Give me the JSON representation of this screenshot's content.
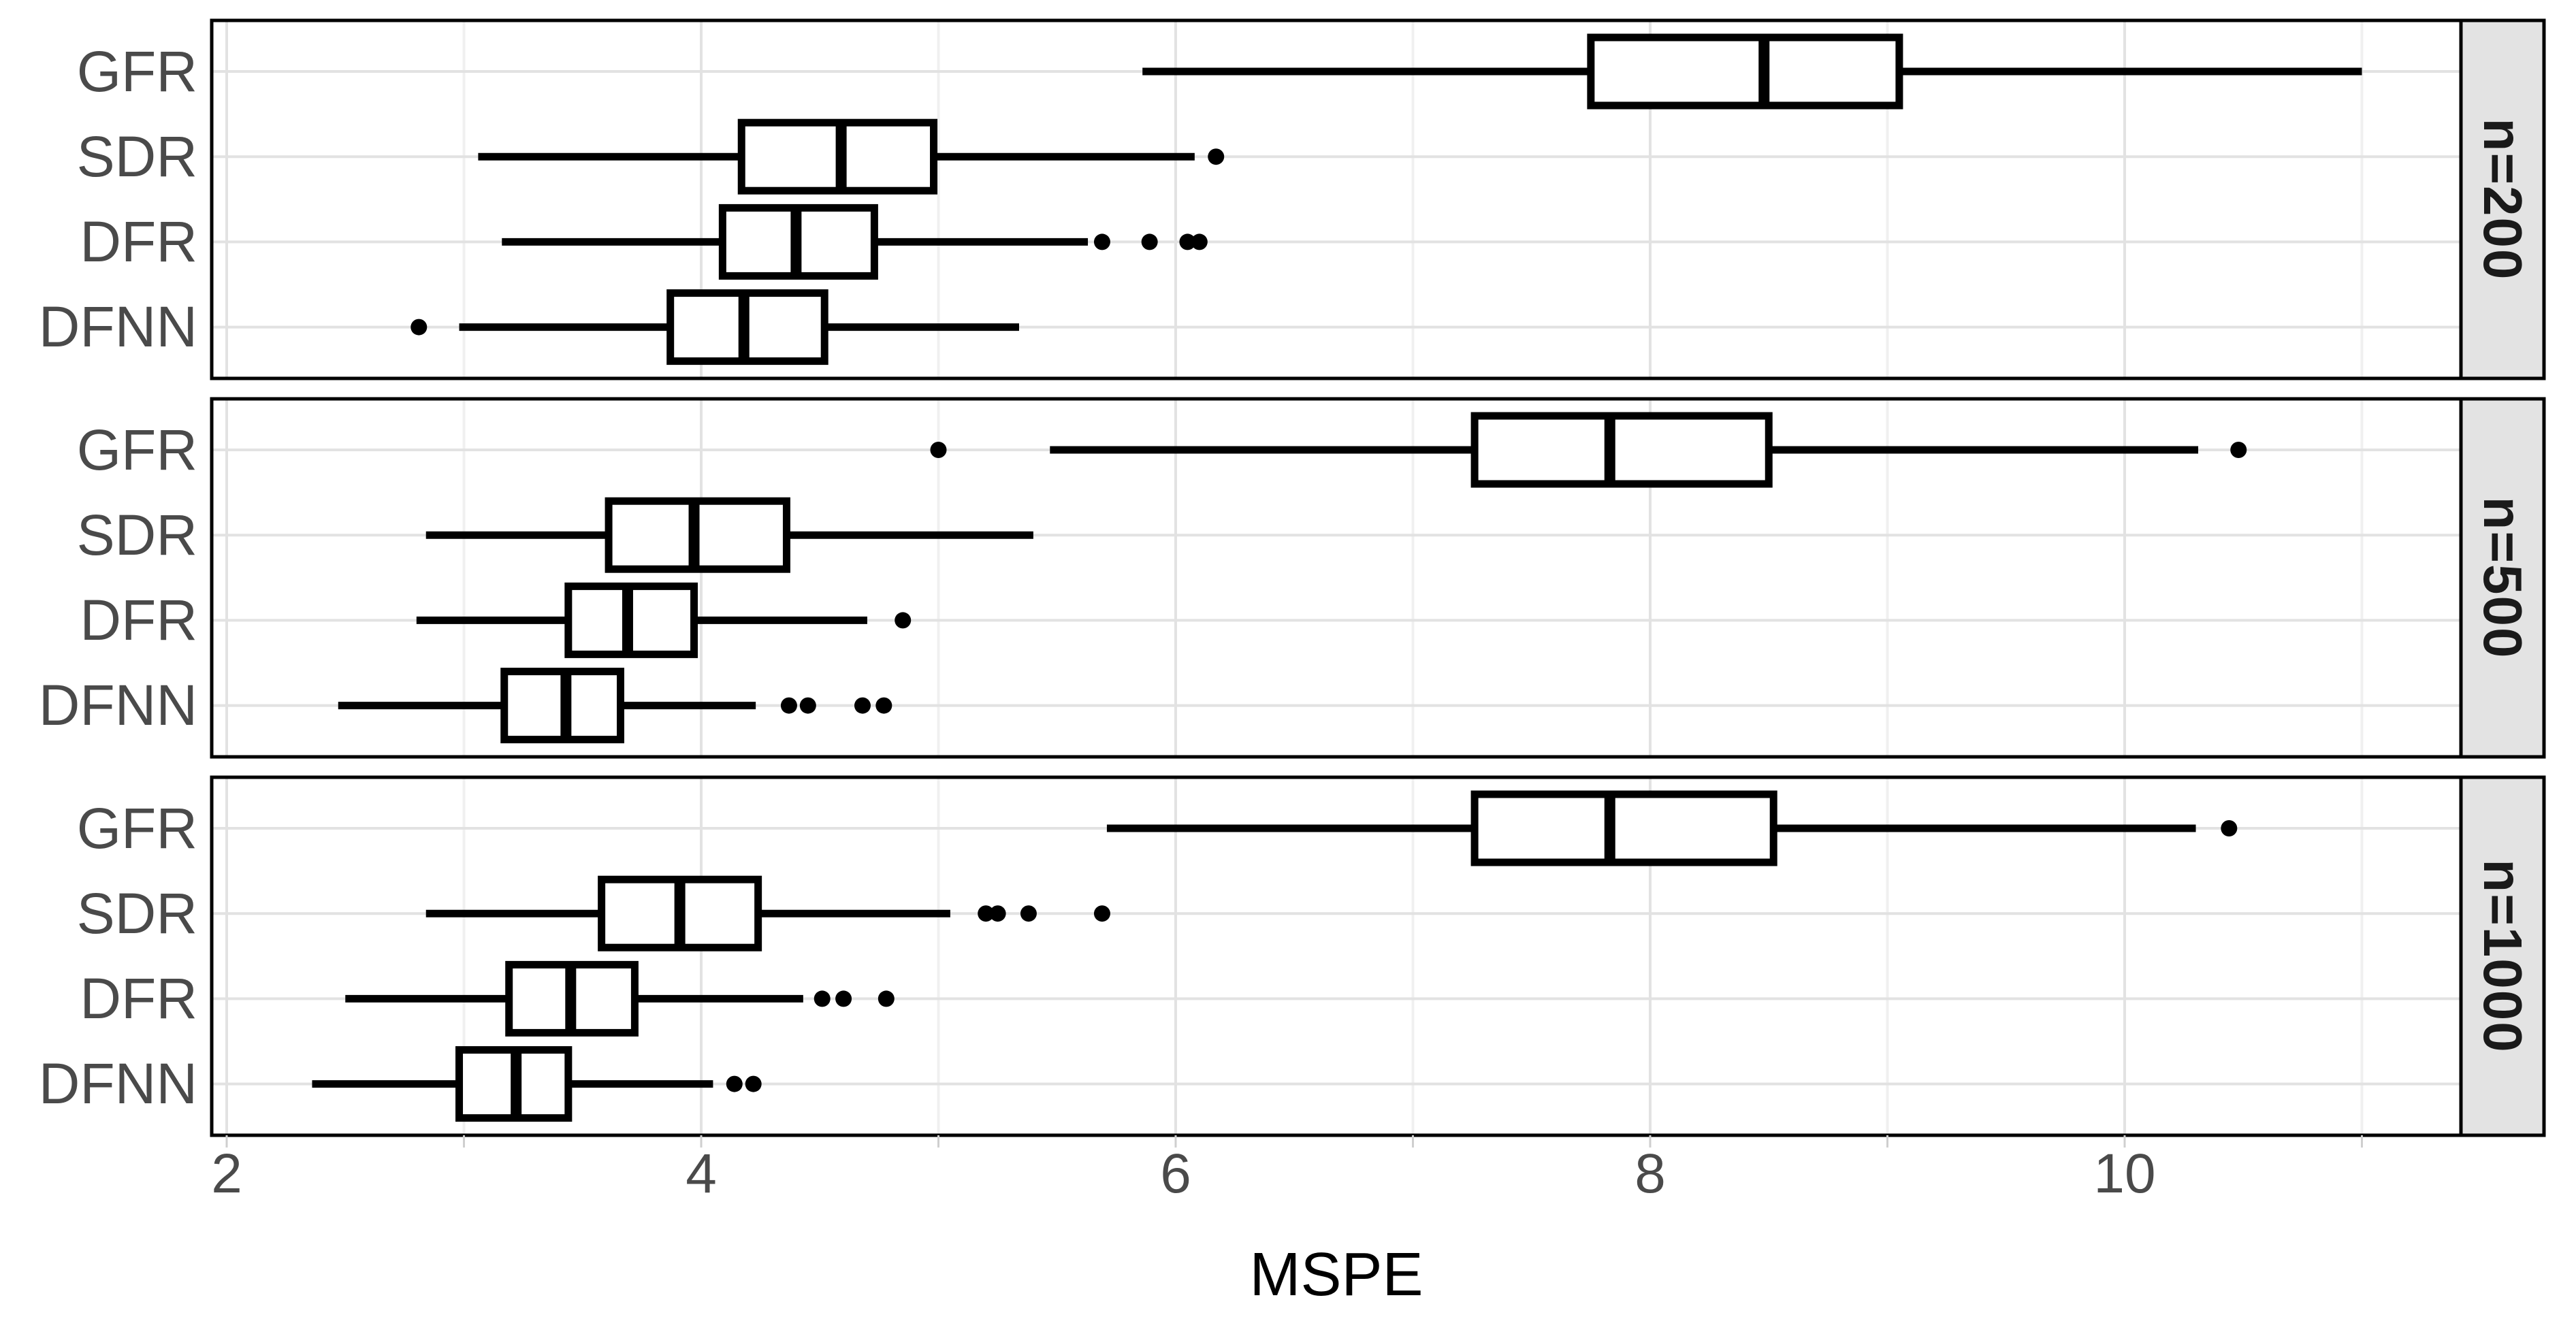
{
  "chart_data": {
    "type": "boxplot",
    "orientation": "horizontal",
    "title": "",
    "xlabel": "MSPE",
    "ylabel": "",
    "x_ticks": [
      "2",
      "4",
      "6",
      "8",
      "10"
    ],
    "x_tick_values": [
      2,
      4,
      6,
      8,
      10
    ],
    "x_minor_gridlines": [
      3,
      5,
      7,
      9,
      11
    ],
    "x_range": [
      1.94,
      11.48
    ],
    "grid": true,
    "legend": "none",
    "facet_strip_side": "right",
    "y_categories": [
      "GFR",
      "SDR",
      "DFR",
      "DFNN"
    ],
    "facets": [
      {
        "label": "n=200",
        "boxes": [
          {
            "method": "GFR",
            "whisker_min": 5.86,
            "q1": 7.75,
            "median": 8.48,
            "q3": 9.05,
            "whisker_max": 11.0,
            "outliers": []
          },
          {
            "method": "SDR",
            "whisker_min": 3.06,
            "q1": 4.17,
            "median": 4.59,
            "q3": 4.98,
            "whisker_max": 6.08,
            "outliers": [
              6.17
            ]
          },
          {
            "method": "DFR",
            "whisker_min": 3.16,
            "q1": 4.09,
            "median": 4.4,
            "q3": 4.73,
            "whisker_max": 5.63,
            "outliers": [
              5.69,
              5.89,
              6.05,
              6.1
            ]
          },
          {
            "method": "DFNN",
            "whisker_min": 2.98,
            "q1": 3.87,
            "median": 4.18,
            "q3": 4.52,
            "whisker_max": 5.34,
            "outliers": [
              2.81
            ]
          }
        ]
      },
      {
        "label": "n=500",
        "boxes": [
          {
            "method": "GFR",
            "whisker_min": 5.47,
            "q1": 7.26,
            "median": 7.83,
            "q3": 8.5,
            "whisker_max": 10.31,
            "outliers": [
              5.0,
              10.48
            ]
          },
          {
            "method": "SDR",
            "whisker_min": 2.84,
            "q1": 3.61,
            "median": 3.97,
            "q3": 4.36,
            "whisker_max": 5.4,
            "outliers": []
          },
          {
            "method": "DFR",
            "whisker_min": 2.8,
            "q1": 3.44,
            "median": 3.69,
            "q3": 3.97,
            "whisker_max": 4.7,
            "outliers": [
              4.85
            ]
          },
          {
            "method": "DFNN",
            "whisker_min": 2.47,
            "q1": 3.17,
            "median": 3.43,
            "q3": 3.66,
            "whisker_max": 4.23,
            "outliers": [
              4.37,
              4.45,
              4.68,
              4.77
            ]
          }
        ]
      },
      {
        "label": "n=1000",
        "boxes": [
          {
            "method": "GFR",
            "whisker_min": 5.71,
            "q1": 7.26,
            "median": 7.83,
            "q3": 8.52,
            "whisker_max": 10.3,
            "outliers": [
              10.44
            ]
          },
          {
            "method": "SDR",
            "whisker_min": 2.84,
            "q1": 3.58,
            "median": 3.91,
            "q3": 4.24,
            "whisker_max": 5.05,
            "outliers": [
              5.2,
              5.25,
              5.38,
              5.69
            ]
          },
          {
            "method": "DFR",
            "whisker_min": 2.5,
            "q1": 3.19,
            "median": 3.45,
            "q3": 3.72,
            "whisker_max": 4.43,
            "outliers": [
              4.51,
              4.6,
              4.78
            ]
          },
          {
            "method": "DFNN",
            "whisker_min": 2.36,
            "q1": 2.98,
            "median": 3.22,
            "q3": 3.44,
            "whisker_max": 4.05,
            "outliers": [
              4.14,
              4.22
            ]
          }
        ]
      }
    ],
    "style": {
      "box_fill": "#ffffff",
      "line_color": "#000000",
      "panel_border": "#000000",
      "grid_major": "#e2e2e2",
      "grid_minor": "#f0f0f0",
      "strip_fill": "#e3e3e3",
      "tick_mark_color": "#cfcfcf",
      "axis_text_color": "#4a4a4a",
      "title_color": "#000000"
    }
  }
}
